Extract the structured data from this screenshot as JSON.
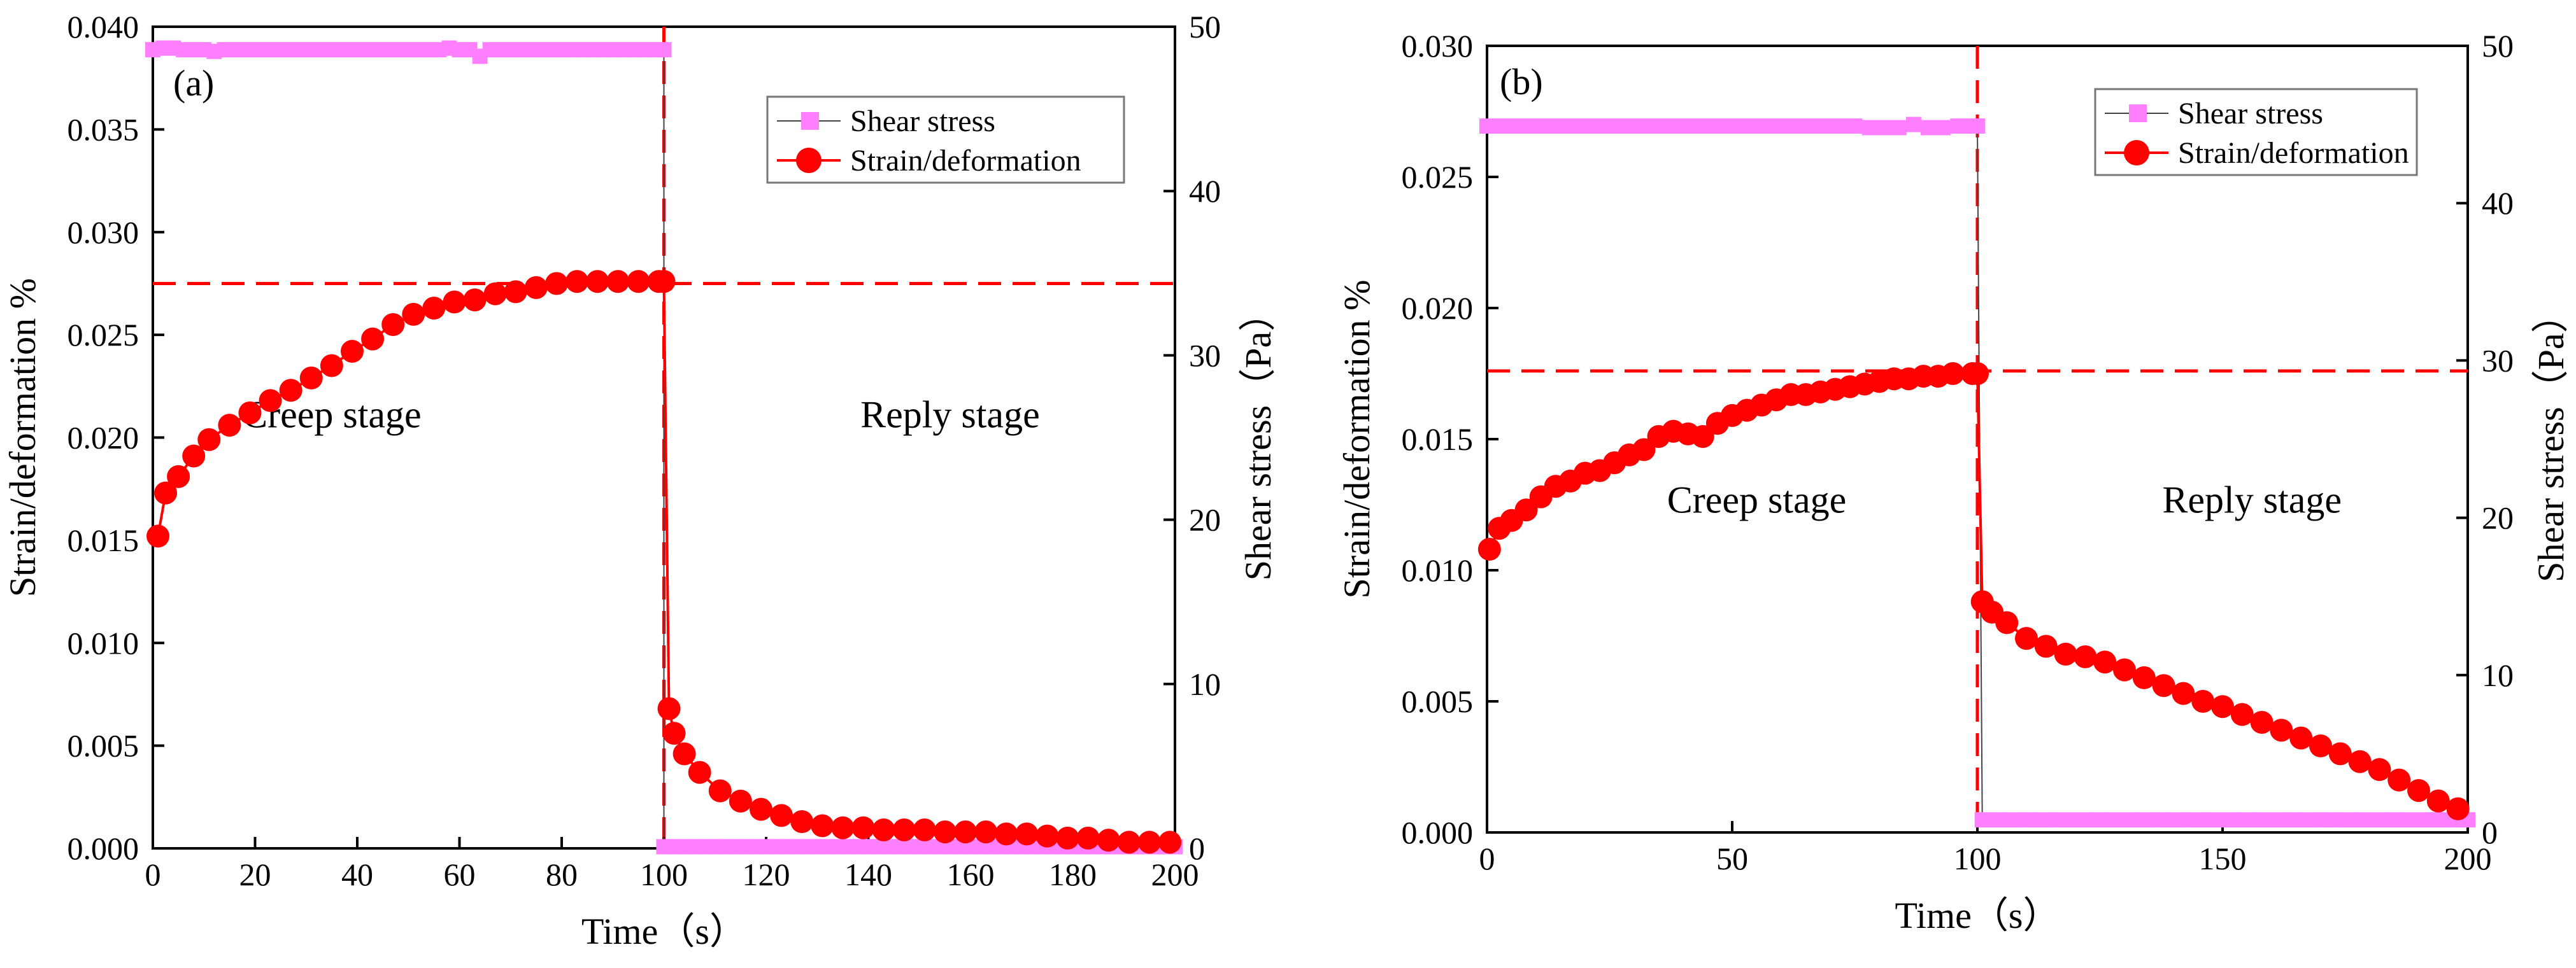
{
  "colors": {
    "stress": "#ff80ff",
    "strain": "#ff0000",
    "stress_line": "#444444",
    "axis": "#000000"
  },
  "chart_data": [
    {
      "type": "line",
      "panel_label": "(a)",
      "xlabel": "Time（s）",
      "ylabel_left": "Strain/deformation %",
      "ylabel_right": "Shear stress（Pa）",
      "xlim": [
        0,
        200
      ],
      "ylim_left": [
        0,
        0.04
      ],
      "ylim_right": [
        0,
        50
      ],
      "xticks": [
        0,
        20,
        40,
        60,
        80,
        100,
        120,
        140,
        160,
        180,
        200
      ],
      "yticks_left": [
        0,
        0.005,
        0.01,
        0.015,
        0.02,
        0.025,
        0.03,
        0.035,
        0.04
      ],
      "yticks_left_labels": [
        "0.000",
        "0.005",
        "0.010",
        "0.015",
        "0.020",
        "0.025",
        "0.030",
        "0.035",
        "0.040"
      ],
      "yticks_right": [
        0,
        10,
        20,
        30,
        40,
        50
      ],
      "legend_position": "top-right",
      "annotations": [
        {
          "text": "Creep stage",
          "x": 35,
          "y": 0.0205
        },
        {
          "text": "Reply stage",
          "x": 156,
          "y": 0.0205
        }
      ],
      "reference_lines": {
        "vertical_x": 100,
        "horizontal_y": 0.0275
      },
      "series": [
        {
          "name": "Shear stress",
          "axis": "right",
          "marker": "square",
          "x": [
            0,
            2,
            4,
            6,
            8,
            10,
            12,
            14,
            16,
            18,
            20,
            22,
            24,
            26,
            28,
            30,
            32,
            34,
            36,
            38,
            40,
            42,
            44,
            46,
            48,
            50,
            52,
            54,
            56,
            58,
            60,
            62,
            64,
            66,
            68,
            70,
            72,
            74,
            76,
            78,
            80,
            82,
            84,
            86,
            88,
            90,
            92,
            94,
            96,
            98,
            100,
            100,
            102,
            104,
            106,
            108,
            110,
            112,
            114,
            116,
            118,
            120,
            122,
            124,
            126,
            128,
            130,
            132,
            134,
            136,
            138,
            140,
            142,
            144,
            146,
            148,
            150,
            152,
            154,
            156,
            158,
            160,
            162,
            164,
            166,
            168,
            170,
            172,
            174,
            176,
            178,
            180,
            182,
            184,
            186,
            188,
            190,
            192,
            194,
            196,
            198,
            200
          ],
          "y": [
            48.6,
            48.7,
            48.7,
            48.6,
            48.6,
            48.6,
            48.5,
            48.6,
            48.6,
            48.6,
            48.6,
            48.6,
            48.6,
            48.6,
            48.6,
            48.6,
            48.6,
            48.6,
            48.6,
            48.6,
            48.6,
            48.6,
            48.6,
            48.6,
            48.6,
            48.6,
            48.6,
            48.6,
            48.6,
            48.7,
            48.6,
            48.6,
            48.2,
            48.6,
            48.6,
            48.6,
            48.6,
            48.6,
            48.6,
            48.6,
            48.6,
            48.6,
            48.6,
            48.6,
            48.6,
            48.6,
            48.6,
            48.6,
            48.6,
            48.6,
            48.6,
            0.1,
            0.1,
            0.1,
            0.1,
            0.1,
            0.1,
            0.1,
            0.1,
            0.1,
            0.1,
            0.1,
            0.1,
            0.1,
            0.1,
            0.1,
            0.1,
            0.1,
            0.1,
            0.1,
            0.1,
            0.1,
            0.1,
            0.1,
            0.1,
            0.1,
            0.1,
            0.1,
            0.1,
            0.1,
            0.1,
            0.1,
            0.1,
            0.1,
            0.1,
            0.1,
            0.1,
            0.1,
            0.1,
            0.1,
            0.1,
            0.1,
            0.1,
            0.1,
            0.1,
            0.1,
            0.1,
            0.1,
            0.1,
            0.1,
            0.1,
            0.1
          ]
        },
        {
          "name": "Strain/deformation",
          "axis": "left",
          "marker": "circle",
          "x": [
            1,
            2.5,
            5,
            8,
            11,
            15,
            19,
            23,
            27,
            31,
            35,
            39,
            43,
            47,
            51,
            55,
            59,
            63,
            67,
            71,
            75,
            79,
            83,
            87,
            91,
            95,
            99,
            100,
            101,
            102,
            104,
            107,
            111,
            115,
            119,
            123,
            127,
            131,
            135,
            139,
            143,
            147,
            151,
            155,
            159,
            163,
            167,
            171,
            175,
            179,
            183,
            187,
            191,
            195,
            199
          ],
          "y": [
            0.0152,
            0.0173,
            0.0181,
            0.0191,
            0.0199,
            0.0206,
            0.0212,
            0.0218,
            0.0223,
            0.0229,
            0.0235,
            0.0242,
            0.0248,
            0.0255,
            0.026,
            0.0263,
            0.0266,
            0.0267,
            0.027,
            0.0271,
            0.0273,
            0.0275,
            0.0276,
            0.0276,
            0.0276,
            0.0276,
            0.0276,
            0.0276,
            0.0068,
            0.0056,
            0.0046,
            0.0037,
            0.0028,
            0.0023,
            0.0019,
            0.0016,
            0.0013,
            0.0011,
            0.001,
            0.001,
            0.0009,
            0.0009,
            0.0009,
            0.0008,
            0.0008,
            0.0008,
            0.0007,
            0.0007,
            0.0006,
            0.0005,
            0.0005,
            0.0004,
            0.0003,
            0.0003,
            0.0003
          ]
        }
      ]
    },
    {
      "type": "line",
      "panel_label": "(b)",
      "xlabel": "Time（s）",
      "ylabel_left": "Strain/deformation %",
      "ylabel_right": "Shear stress（Pa）",
      "xlim": [
        0,
        200
      ],
      "ylim_left": [
        0,
        0.03
      ],
      "ylim_right": [
        0,
        50
      ],
      "xticks": [
        0,
        50,
        100,
        150,
        200
      ],
      "yticks_left": [
        0,
        0.005,
        0.01,
        0.015,
        0.02,
        0.025,
        0.03
      ],
      "yticks_left_labels": [
        "0.000",
        "0.005",
        "0.010",
        "0.015",
        "0.020",
        "0.025",
        "0.030"
      ],
      "yticks_right": [
        0,
        10,
        20,
        30,
        40,
        50
      ],
      "legend_position": "top-right",
      "annotations": [
        {
          "text": "Creep stage",
          "x": 55,
          "y": 0.0122
        },
        {
          "text": "Reply stage",
          "x": 156,
          "y": 0.0122
        }
      ],
      "reference_lines": {
        "vertical_x": 100,
        "horizontal_y": 0.0176
      },
      "series": [
        {
          "name": "Shear stress",
          "axis": "right",
          "marker": "square",
          "x": [
            0,
            3,
            6,
            9,
            12,
            15,
            18,
            21,
            24,
            27,
            30,
            33,
            36,
            39,
            42,
            45,
            48,
            51,
            54,
            57,
            60,
            63,
            66,
            69,
            72,
            75,
            78,
            81,
            84,
            87,
            90,
            93,
            96,
            99,
            100,
            101,
            104,
            107,
            110,
            113,
            116,
            119,
            122,
            125,
            128,
            131,
            134,
            137,
            140,
            143,
            146,
            149,
            152,
            155,
            158,
            161,
            164,
            167,
            170,
            173,
            176,
            179,
            182,
            185,
            188,
            191,
            194,
            197,
            200
          ],
          "y": [
            44.9,
            44.9,
            44.9,
            44.9,
            44.9,
            44.9,
            44.9,
            44.9,
            44.9,
            44.9,
            44.9,
            44.9,
            44.9,
            44.9,
            44.9,
            44.9,
            44.9,
            44.9,
            44.9,
            44.9,
            44.9,
            44.9,
            44.9,
            44.9,
            44.9,
            44.9,
            44.8,
            44.8,
            44.8,
            45.0,
            44.8,
            44.8,
            44.9,
            44.9,
            44.9,
            0.8,
            0.8,
            0.8,
            0.8,
            0.8,
            0.8,
            0.8,
            0.8,
            0.8,
            0.8,
            0.8,
            0.8,
            0.8,
            0.8,
            0.8,
            0.8,
            0.8,
            0.8,
            0.8,
            0.8,
            0.8,
            0.8,
            0.8,
            0.8,
            0.8,
            0.8,
            0.8,
            0.8,
            0.8,
            0.8,
            0.8,
            0.8,
            0.8,
            0.8
          ]
        },
        {
          "name": "Strain/deformation",
          "axis": "left",
          "marker": "circle",
          "x": [
            0.5,
            2.5,
            5,
            8,
            11,
            14,
            17,
            20,
            23,
            26,
            29,
            32,
            35,
            38,
            41,
            44,
            47,
            50,
            53,
            56,
            59,
            62,
            65,
            68,
            71,
            74,
            77,
            80,
            83,
            86,
            89,
            92,
            95,
            99,
            100,
            101,
            103,
            106,
            110,
            114,
            118,
            122,
            126,
            130,
            134,
            138,
            142,
            146,
            150,
            154,
            158,
            162,
            166,
            170,
            174,
            178,
            182,
            186,
            190,
            194,
            198
          ],
          "y": [
            0.0108,
            0.0116,
            0.0119,
            0.0123,
            0.0128,
            0.0132,
            0.0134,
            0.0137,
            0.0138,
            0.0141,
            0.0144,
            0.0146,
            0.0151,
            0.0153,
            0.0152,
            0.0151,
            0.0156,
            0.0159,
            0.0161,
            0.0163,
            0.0165,
            0.0167,
            0.0167,
            0.0168,
            0.0169,
            0.017,
            0.0171,
            0.0172,
            0.0173,
            0.0173,
            0.0174,
            0.0174,
            0.0175,
            0.0175,
            0.0175,
            0.0088,
            0.0084,
            0.008,
            0.0074,
            0.0071,
            0.0068,
            0.0067,
            0.0065,
            0.0062,
            0.0059,
            0.0056,
            0.0053,
            0.005,
            0.0048,
            0.0045,
            0.0042,
            0.0039,
            0.0036,
            0.0033,
            0.003,
            0.0027,
            0.0024,
            0.002,
            0.0016,
            0.0012,
            0.0009
          ]
        }
      ]
    }
  ]
}
